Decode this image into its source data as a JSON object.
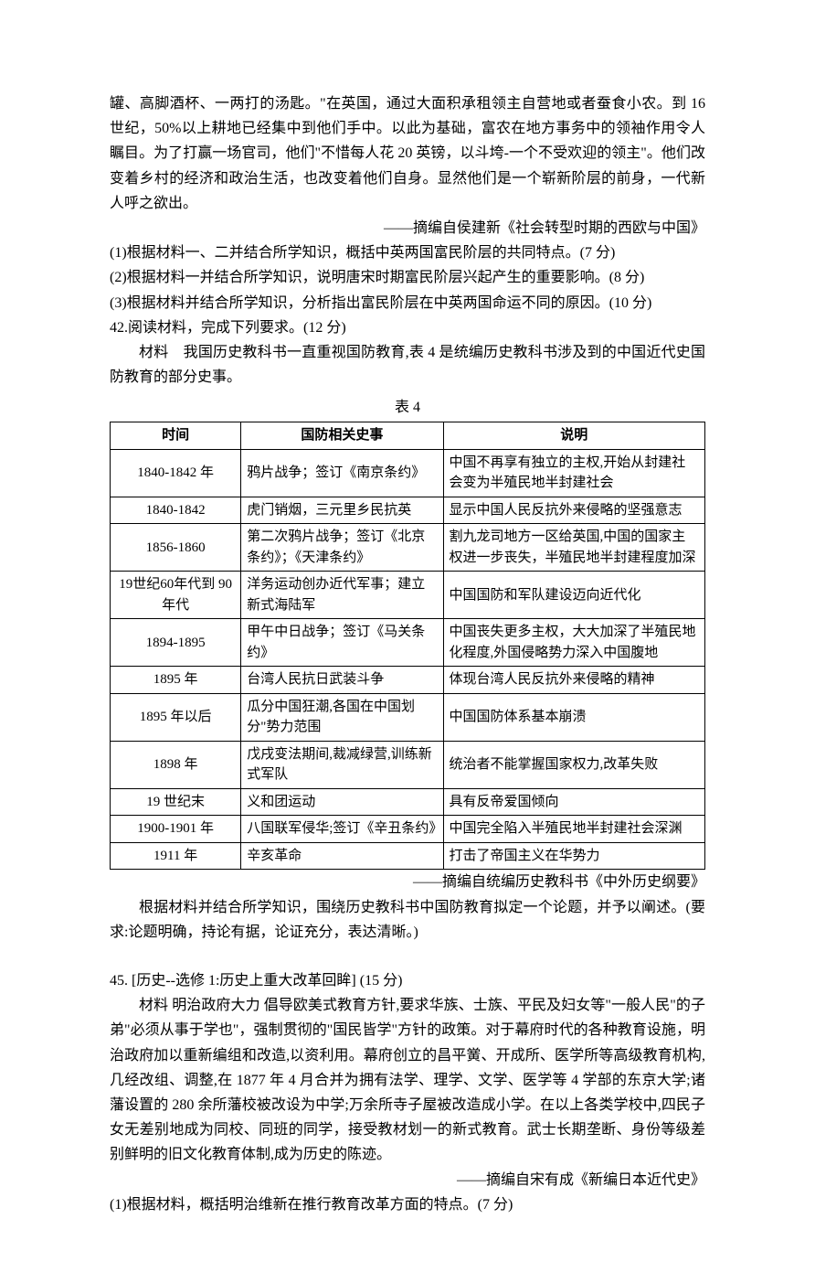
{
  "intro": {
    "p1": "罐、高脚酒杯、一两打的汤匙。\"在英国，通过大面积承租领主自营地或者蚕食小农。到 16 世纪，50%以上耕地已经集中到他们手中。以此为基础，富农在地方事务中的领袖作用令人瞩目。为了打赢一场官司，他们\"不惜每人花 20 英镑，以斗垮-一个不受欢迎的领主\"。他们改变着乡村的经济和政治生活，也改变着他们自身。显然他们是一个崭新阶层的前身，一代新人呼之欲出。",
    "source1": "——摘编自侯建新《社会转型时期的西欧与中国》"
  },
  "questions": {
    "q1": "(1)根据材料一、二并结合所学知识，概括中英两国富民阶层的共同特点。(7 分)",
    "q2": "(2)根据材料一并结合所学知识，说明唐宋时期富民阶层兴起产生的重要影响。(8 分)",
    "q3": "(3)根据材料并结合所学知识，分析指出富民阶层在中英两国命运不同的原因。(10 分)",
    "q42": "42.阅读材料，完成下列要求。(12 分)"
  },
  "material": {
    "intro": "材料　我国历史教科书一直重视国防教育,表 4 是统编历史教科书涉及到的中国近代史国防教育的部分史事。",
    "tableCaption": "表 4",
    "headers": {
      "time": "时间",
      "event": "国防相关史事",
      "desc": "说明"
    },
    "rows": [
      {
        "time": "1840-1842 年",
        "event": "鸦片战争；签订《南京条约》",
        "desc": "中国不再享有独立的主权,开始从封建社会变为半殖民地半封建社会"
      },
      {
        "time": "1840-1842",
        "event": "虎门销烟，三元里乡民抗英",
        "desc": "显示中国人民反抗外来侵略的坚强意志"
      },
      {
        "time": "1856-1860",
        "event": "第二次鸦片战争；签订《北京条约》；《天津条约》",
        "desc": "割九龙司地方一区给英国,中国的国家主权进一步丧失，半殖民地半封建程度加深"
      },
      {
        "time": "19世纪60年代到 90 年代",
        "event": "洋务运动创办近代军事；建立新式海陆军",
        "desc": "中国国防和军队建设迈向近代化"
      },
      {
        "time": "1894-1895",
        "event": "甲午中日战争；签订《马关条约》",
        "desc": "中国丧失更多主权，大大加深了半殖民地化程度,外国侵略势力深入中国腹地"
      },
      {
        "time": "1895 年",
        "event": "台湾人民抗日武装斗争",
        "desc": "体现台湾人民反抗外来侵略的精神"
      },
      {
        "time": "1895 年以后",
        "event": "瓜分中国狂潮,各国在中国划分\"势力范围",
        "desc": "中国国防体系基本崩溃"
      },
      {
        "time": "1898 年",
        "event": "戊戌变法期间,裁减绿营,训练新式军队",
        "desc": "统治者不能掌握国家权力,改革失败"
      },
      {
        "time": "19 世纪末",
        "event": "义和团运动",
        "desc": "具有反帝爱国倾向"
      },
      {
        "time": "1900-1901 年",
        "event": "八国联军侵华;签订《辛丑条约》",
        "desc": "中国完全陷入半殖民地半封建社会深渊"
      },
      {
        "time": "1911 年",
        "event": "辛亥革命",
        "desc": "打击了帝国主义在华势力"
      }
    ],
    "source2": "——摘编自统编历史教科书《中外历史纲要》",
    "prompt": "根据材料并结合所学知识，围绕历史教科书中国防教育拟定一个论题，并予以阐述。(要求:论题明确，持论有据，论证充分，表达清晰。)"
  },
  "q45": {
    "title": "45. [历史--选修 1:历史上重大改革回眸] (15 分)",
    "body": "材料  明治政府大力 倡导欧美式教育方针,要求华族、士族、平民及妇女等\"一般人民\"的子弟\"必须从事于学也\"，强制贯彻的\"国民皆学\"方针的政策。对于幕府时代的各种教育设施，明治政府加以重新编组和改造,以资利用。幕府创立的昌平黉、开成所、医学所等高级教育机构,几经改组、调整,在 1877 年 4 月合并为拥有法学、理学、文学、医学等 4 学部的东京大学;诸藩设置的 280 余所藩校被改设为中学;万余所寺子屋被改造成小学。在以上各类学校中,四民子女无差别地成为同校、同班的同学，接受教材划一的新式教育。武士长期垄断、身份等级差别鲜明的旧文化教育体制,成为历史的陈迹。",
    "source3": "——摘编自宋有成《新编日本近代史》",
    "subq": "(1)根据材料，概括明治维新在推行教育改革方面的特点。(7 分)"
  }
}
